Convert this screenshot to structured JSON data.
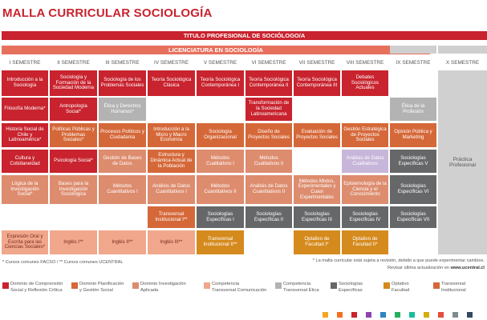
{
  "title": "MALLA CURRICULAR SOCIOLOGÍA",
  "band_title": "TITULO PROFESIONAL DE SOCIÓLOGO/A",
  "band_license": "LICENCIATURA EN SOCIOLOGÍA",
  "semesters": [
    "I SEMESTRE",
    "II SEMESTRE",
    "III SEMESTRE",
    "IV SEMESTRE",
    "V SEMESTRE",
    "VI SEMESTRE",
    "VII SEMESTRE",
    "VIII SEMESTRE",
    "IX SEMESTRE",
    "X SEMESTRE"
  ],
  "courses": [
    {
      "label": "Introducción a la Sociología",
      "type": "red"
    },
    {
      "label": "Sociología y Formación de la Sociedad Moderna",
      "type": "red"
    },
    {
      "label": "Sociología de los Problemas Sociales",
      "type": "red"
    },
    {
      "label": "Teoría Sociológica Clásica",
      "type": "red"
    },
    {
      "label": "Teoría Sociológica Contemporánea I",
      "type": "red"
    },
    {
      "label": "Teoría Sociológica Contemporánea II",
      "type": "red"
    },
    {
      "label": "Teoría Sociológica Contemporánea III",
      "type": "red"
    },
    {
      "label": "Debates Sociológicos Actuales",
      "type": "red"
    },
    {
      "label": "Filosofía Moderna*",
      "type": "red"
    },
    {
      "label": "Antropología Social*",
      "type": "red"
    },
    {
      "label": "Ética y Derechos Humanos*",
      "type": "grayl"
    },
    {
      "label": "Transformación de la Sociedad Latinoamericana",
      "type": "red"
    },
    {
      "label": "Ética de la Profesión",
      "type": "grayl"
    },
    {
      "label": "Historia Social de Chile y Latinoamérica*",
      "type": "red"
    },
    {
      "label": "Políticas Públicas y Problemas Sociales*",
      "type": "ora"
    },
    {
      "label": "Procesos Políticos y Ciudadanía",
      "type": "ora"
    },
    {
      "label": "Introducción a la Micro y Macro Economía",
      "type": "ora"
    },
    {
      "label": "Sociología Organizacional",
      "type": "ora"
    },
    {
      "label": "Diseño de Proyectos Sociales",
      "type": "ora"
    },
    {
      "label": "Evaluación de Proyectos Sociales",
      "type": "ora"
    },
    {
      "label": "Gestión Estratégica de Proyectos Sociales",
      "type": "ora"
    },
    {
      "label": "Opinión Pública y Marketing",
      "type": "ora"
    },
    {
      "label": "Cultura y Cotidianeidad",
      "type": "red"
    },
    {
      "label": "Psicología Social*",
      "type": "red"
    },
    {
      "label": "Gestión de Bases de Datos",
      "type": "salm"
    },
    {
      "label": "Estructura y Dinámica Actual de la Población",
      "type": "ora"
    },
    {
      "label": "Métodos Cualitativos I",
      "type": "salm"
    },
    {
      "label": "Métodos Cualitativos II",
      "type": "salm"
    },
    {
      "label": "Análisis de Datos Cualitativos",
      "type": "lav"
    },
    {
      "label": "Sociologías Específicas V",
      "type": "gray"
    },
    {
      "label": "Lógica de la Investigación Social*",
      "type": "salm"
    },
    {
      "label": "Bases para la Investigación Sociológica",
      "type": "salm"
    },
    {
      "label": "Métodos Cuantitativos I",
      "type": "salm"
    },
    {
      "label": "Análisis de Datos Cuantitativos I",
      "type": "salm"
    },
    {
      "label": "Métodos Cuantitativos II",
      "type": "salm"
    },
    {
      "label": "Análisis de Datos Cuantitativos II",
      "type": "salm"
    },
    {
      "label": "Métodos Mixtos, Experimentales y Cuasi Experimentales",
      "type": "salm"
    },
    {
      "label": "Epistemología de la Ciencia y el Conocimiento",
      "type": "salm"
    },
    {
      "label": "Sociologías Específicas VI",
      "type": "gray"
    },
    {
      "label": "Transversal Institucional I**",
      "type": "ora"
    },
    {
      "label": "Sociologías Específicas I",
      "type": "gray"
    },
    {
      "label": "Sociologías Específicas II",
      "type": "gray"
    },
    {
      "label": "Sociologías Específicas III",
      "type": "gray"
    },
    {
      "label": "Sociologías Específicas IV",
      "type": "gray"
    },
    {
      "label": "Sociologías Específicas VII",
      "type": "gray"
    },
    {
      "label": "Expresión Oral y Escrita para las Ciencias Sociales*",
      "type": "pink"
    },
    {
      "label": "Inglés I**",
      "type": "pink"
    },
    {
      "label": "Inglés II**",
      "type": "pink"
    },
    {
      "label": "Inglés III**",
      "type": "pink"
    },
    {
      "label": "Transversal Institucional II**",
      "type": "gold"
    },
    {
      "label": "Optativo de Facultad I*",
      "type": "gold"
    },
    {
      "label": "Optativo de Facultad II*",
      "type": "gold"
    },
    {
      "label": "Práctica Profesional",
      "type": "plain"
    }
  ],
  "footnote_left": "* Cursos comunes FACSO / ** Cursos comunes UCENTRAL",
  "footnote_right1": "* La malla curricular está sujeta a revisión, debido a que puede experimentar cambios.",
  "footnote_right2_prefix": "Revisar última actualización en ",
  "footnote_right2_url": "www.ucentral.cl",
  "legend": [
    {
      "line1": "Dominio de Comprensión",
      "line2": "Social y Reflexión Crítica",
      "color": "#c8232e"
    },
    {
      "line1": "Dominio Planificación",
      "line2": "y Gestión Social",
      "color": "#d56839"
    },
    {
      "line1": "Dominio Investigación",
      "line2": "Aplicada",
      "color": "#dd8c6e"
    },
    {
      "line1": "Competencia",
      "line2": "Transversal Comunicación",
      "color": "#f1a78b"
    },
    {
      "line1": "Competencia",
      "line2": "Transversal Ética",
      "color": "#b3b3b3"
    },
    {
      "line1": "Sociologías",
      "line2": "Específicas",
      "color": "#666769"
    },
    {
      "line1": "Optativo",
      "line2": "Facultad",
      "color": "#d58a1d"
    },
    {
      "line1": "Transversal",
      "line2": "Institucional",
      "color": "#d56839"
    }
  ],
  "bottom_colors": [
    "#f5a623",
    "#f37021",
    "#c8232e",
    "#8e44ad",
    "#2e86c1",
    "#27ae60",
    "#1abc9c",
    "#d4ac0d",
    "#e74c3c",
    "#7f8c8d",
    "#34495e"
  ]
}
